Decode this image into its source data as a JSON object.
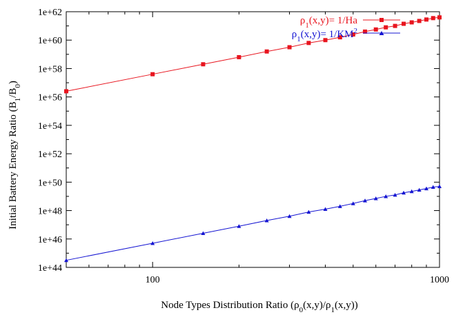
{
  "chart_data": {
    "type": "line",
    "xlabel_parts": {
      "pre": "Node Types Distribution Ratio (",
      "rho": "ρ",
      "sub0": "0",
      "mid": "(x,y)/",
      "rho2": "ρ",
      "sub1": "1",
      "post": "(x,y))"
    },
    "ylabel_parts": {
      "pre": "Initial Battery Energy Ratio (B",
      "sub1": "1",
      "mid": "/B",
      "sub0": "0",
      "post": ")"
    },
    "x_scale": "log",
    "y_scale": "log",
    "xlim": [
      50,
      1000
    ],
    "ylim": [
      1e+44,
      1e+62
    ],
    "x_ticks": [
      {
        "value": 100,
        "label": "100"
      },
      {
        "value": 1000,
        "label": "1000"
      }
    ],
    "y_ticks": [
      {
        "value": 1e+44,
        "label": "1e+44"
      },
      {
        "value": 1e+46,
        "label": "1e+46"
      },
      {
        "value": 1e+48,
        "label": "1e+48"
      },
      {
        "value": 1e+50,
        "label": "1e+50"
      },
      {
        "value": 1e+52,
        "label": "1e+52"
      },
      {
        "value": 1e+54,
        "label": "1e+54"
      },
      {
        "value": 1e+56,
        "label": "1e+56"
      },
      {
        "value": 1e+58,
        "label": "1e+58"
      },
      {
        "value": 1e+60,
        "label": "1e+60"
      },
      {
        "value": 1e+62,
        "label": "1e+62"
      }
    ],
    "grid": false,
    "legend_position": "top-right",
    "x": [
      50,
      100,
      150,
      200,
      250,
      300,
      350,
      400,
      450,
      500,
      550,
      600,
      650,
      700,
      750,
      800,
      850,
      900,
      950,
      1000
    ],
    "series": [
      {
        "name_parts": {
          "rho": "ρ",
          "sub": "1",
          "rest": "(x,y)= 1/Ha",
          "sup": ""
        },
        "color": "#e8141e",
        "marker": "square",
        "log10_values": [
          56.4,
          57.6,
          58.3,
          58.8,
          59.2,
          59.5,
          59.8,
          60.0,
          60.2,
          60.4,
          60.6,
          60.75,
          60.9,
          61.0,
          61.15,
          61.25,
          61.35,
          61.45,
          61.55,
          61.6
        ]
      },
      {
        "name_parts": {
          "rho": "ρ",
          "sub": "1",
          "rest": "(x,y)= 1/KM",
          "sup": "2"
        },
        "color": "#1414d2",
        "marker": "triangle",
        "log10_values": [
          44.5,
          45.7,
          46.4,
          46.9,
          47.3,
          47.6,
          47.9,
          48.1,
          48.3,
          48.5,
          48.7,
          48.85,
          49.0,
          49.1,
          49.25,
          49.35,
          49.45,
          49.55,
          49.65,
          49.7
        ]
      }
    ]
  }
}
